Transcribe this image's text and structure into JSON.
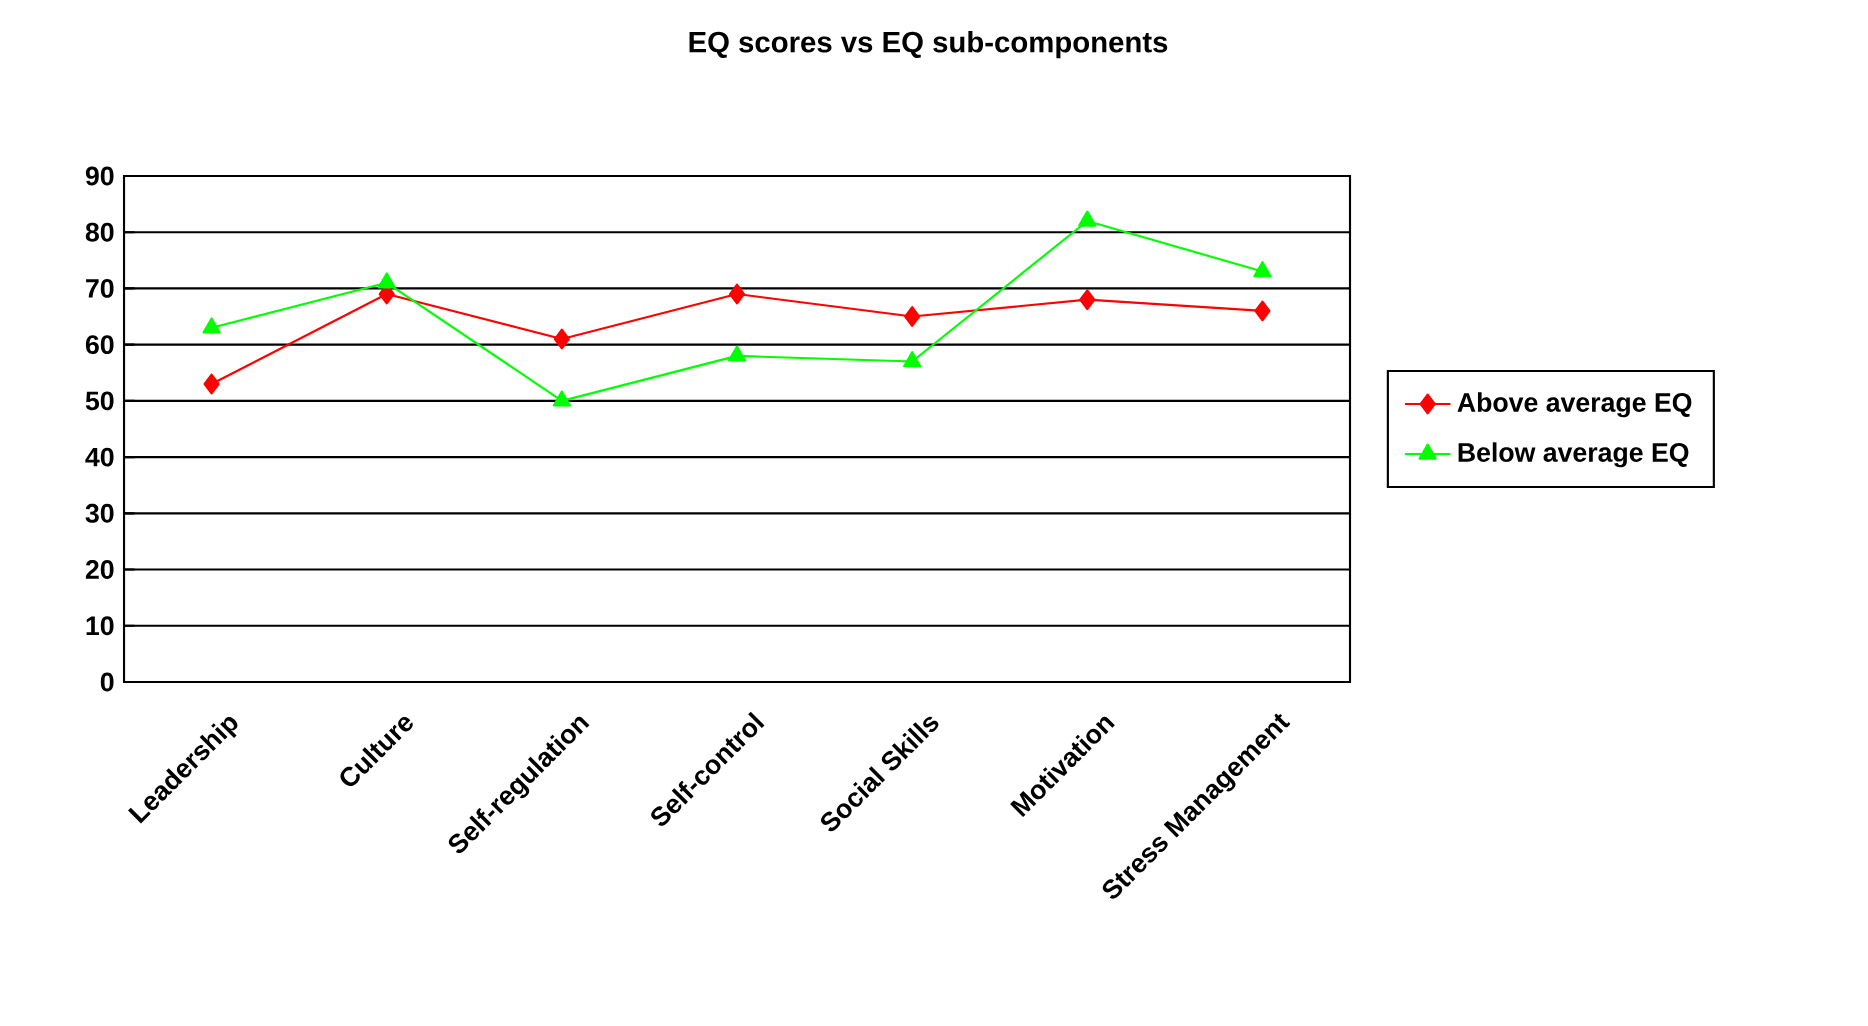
{
  "chart_data": {
    "type": "line",
    "title": "EQ scores vs EQ sub-components",
    "categories": [
      "Leadership",
      "Culture",
      "Self-regulation",
      "Self-control",
      "Social Skills",
      "Motivation",
      "Stress Management"
    ],
    "series": [
      {
        "name": "Above average EQ",
        "color": "#ff0000",
        "marker": "diamond",
        "values": [
          53,
          69,
          61,
          69,
          65,
          68,
          66
        ]
      },
      {
        "name": "Below average EQ",
        "color": "#00ff00",
        "marker": "triangle",
        "values": [
          63,
          71,
          50,
          58,
          57,
          82,
          73
        ]
      }
    ],
    "ylim": [
      0,
      90
    ],
    "yticks": [
      0,
      10,
      20,
      30,
      40,
      50,
      60,
      70,
      80,
      90
    ],
    "grid": "y",
    "legend": "right",
    "line_style": "solid"
  }
}
